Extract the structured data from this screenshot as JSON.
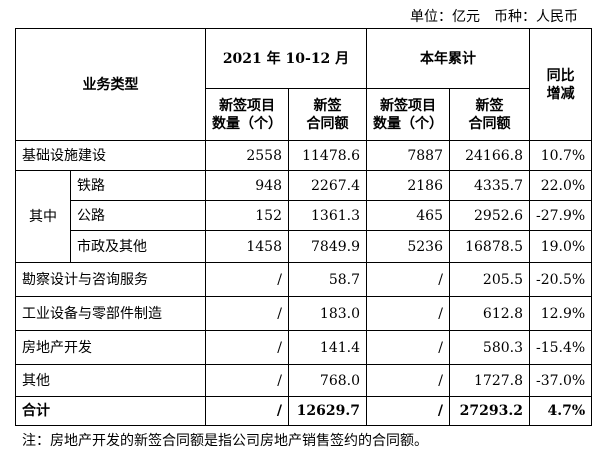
{
  "unit_note": "单位：亿元　币种：人民币",
  "table": {
    "header": {
      "category": "业务类型",
      "period": "2021 年 10-12 月",
      "ytd": "本年累计",
      "yoy": [
        "同比",
        "增减"
      ],
      "sub": [
        [
          "新签项目",
          "数量（个）"
        ],
        [
          "新签",
          "合同额"
        ],
        [
          "新签项目",
          "数量（个）"
        ],
        [
          "新签",
          "合同额"
        ]
      ]
    },
    "group_label": "其中",
    "rows": [
      {
        "label": "基础设施建设",
        "cells": [
          "2558",
          "11478.6",
          "7887",
          "24166.8",
          "10.7%"
        ]
      },
      {
        "label": "铁路",
        "cells": [
          "948",
          "2267.4",
          "2186",
          "4335.7",
          "22.0%"
        ]
      },
      {
        "label": "公路",
        "cells": [
          "152",
          "1361.3",
          "465",
          "2952.6",
          "-27.9%"
        ]
      },
      {
        "label": "市政及其他",
        "cells": [
          "1458",
          "7849.9",
          "5236",
          "16878.5",
          "19.0%"
        ]
      },
      {
        "label": "勘察设计与咨询服务",
        "cells": [
          "/",
          "58.7",
          "/",
          "205.5",
          "-20.5%"
        ]
      },
      {
        "label": "工业设备与零部件制造",
        "cells": [
          "/",
          "183.0",
          "/",
          "612.8",
          "12.9%"
        ]
      },
      {
        "label": "房地产开发",
        "cells": [
          "/",
          "141.4",
          "/",
          "580.3",
          "-15.4%"
        ]
      },
      {
        "label": "其他",
        "cells": [
          "/",
          "768.0",
          "/",
          "1727.8",
          "-37.0%"
        ]
      },
      {
        "label": "合计",
        "cells": [
          "/",
          "12629.7",
          "/",
          "27293.2",
          "4.7%"
        ]
      }
    ]
  },
  "footnote": "注：房地产开发的新签合同额是指公司房地产销售签约的合同额。"
}
